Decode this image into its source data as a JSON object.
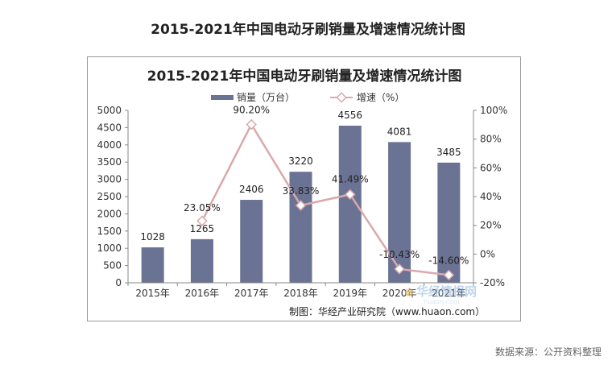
{
  "page": {
    "title": "2015-2021年中国电动牙刷销量及增速情况统计图",
    "source_note": "数据来源：公开资料整理"
  },
  "chart_data": {
    "type": "bar",
    "title": "2015-2021年中国电动牙刷销量及增速情况统计图",
    "categories": [
      "2015年",
      "2016年",
      "2017年",
      "2018年",
      "2019年",
      "2020年",
      "2021年"
    ],
    "series": [
      {
        "name": "销量（万台）",
        "type": "bar",
        "axis": "left",
        "values": [
          1028,
          1265,
          2406,
          3220,
          4556,
          4081,
          3485
        ],
        "labels": [
          "1028",
          "1265",
          "2406",
          "3220",
          "4556",
          "4081",
          "3485"
        ],
        "color": "#6b7394"
      },
      {
        "name": "增速（%）",
        "type": "line",
        "axis": "right",
        "values": [
          null,
          23.05,
          90.2,
          33.83,
          41.49,
          -10.43,
          -14.6
        ],
        "labels": [
          "",
          "23.05%",
          "90.20%",
          "33.83%",
          "41.49%",
          "-10.43%",
          "-14.60%"
        ],
        "color": "#d9a9ab"
      }
    ],
    "y_left": {
      "min": 0,
      "max": 5000,
      "step": 500,
      "ticks": [
        "0",
        "500",
        "1000",
        "1500",
        "2000",
        "2500",
        "3000",
        "3500",
        "4000",
        "4500",
        "5000"
      ]
    },
    "y_right": {
      "min": -20,
      "max": 100,
      "step": 20,
      "ticks": [
        "-20%",
        "0%",
        "20%",
        "40%",
        "60%",
        "80%",
        "100%"
      ]
    },
    "legend_position": "top",
    "grid": false,
    "credit": "制图：华经产业研究院（www.huaon.com）",
    "watermark": {
      "brand": "华经情报网",
      "url": "huaon.com"
    }
  }
}
